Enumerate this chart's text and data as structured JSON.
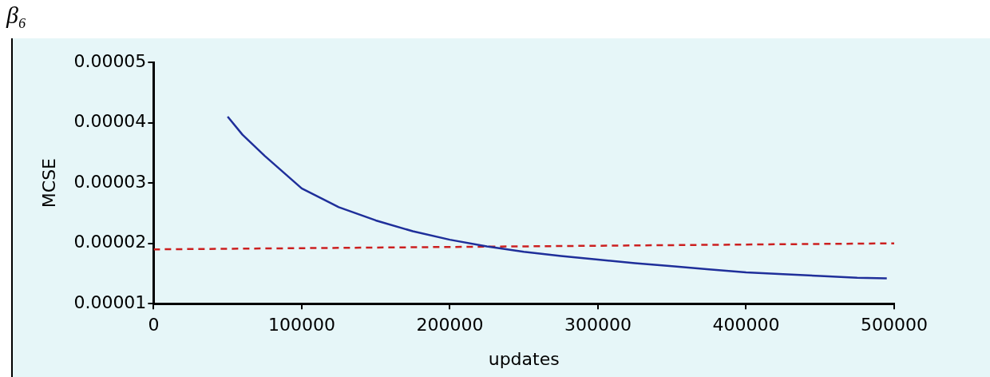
{
  "chart_data": {
    "type": "line",
    "title": "β₆",
    "xlabel": "updates",
    "ylabel": "MCSE",
    "xlim": [
      0,
      500000
    ],
    "xticks": [
      0,
      100000,
      200000,
      300000,
      400000,
      500000
    ],
    "ylim": [
      1e-05,
      5e-05
    ],
    "yticks": [
      {
        "value": 1e-05,
        "label": "0.00001"
      },
      {
        "value": 2e-05,
        "label": "0.00002"
      },
      {
        "value": 3e-05,
        "label": "0.00003"
      },
      {
        "value": 4e-05,
        "label": "0.00004"
      },
      {
        "value": 5e-05,
        "label": "0.00005"
      }
    ],
    "grid": false,
    "legend": false,
    "marker": "none",
    "series": [
      {
        "color": "#1f2f9a",
        "line_style": "solid",
        "x": [
          50000,
          60000,
          75000,
          100000,
          125000,
          150000,
          175000,
          200000,
          225000,
          250000,
          275000,
          300000,
          325000,
          350000,
          375000,
          400000,
          425000,
          450000,
          475000,
          495000
        ],
        "values": [
          4.1e-05,
          3.8e-05,
          3.45e-05,
          2.91e-05,
          2.6e-05,
          2.38e-05,
          2.2e-05,
          2.06e-05,
          1.95e-05,
          1.86e-05,
          1.79e-05,
          1.73e-05,
          1.67e-05,
          1.62e-05,
          1.57e-05,
          1.52e-05,
          1.49e-05,
          1.46e-05,
          1.43e-05,
          1.42e-05
        ]
      },
      {
        "color": "#cc2020",
        "line_style": "dashed",
        "x": [
          0,
          500000
        ],
        "values": [
          1.9e-05,
          2e-05
        ]
      }
    ]
  }
}
